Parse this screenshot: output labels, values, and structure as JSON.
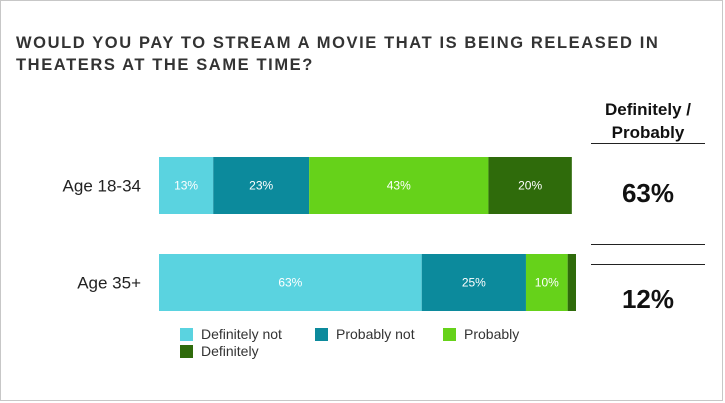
{
  "title": "WOULD YOU PAY TO STREAM A MOVIE THAT IS BEING RELEASED IN THEATERS AT THE SAME TIME?",
  "summary": {
    "header": "Definitely / Probably",
    "values": [
      "63%",
      "12%"
    ]
  },
  "colors": {
    "definitely_not": "#5ad3e0",
    "probably_not": "#0c8a9c",
    "probably": "#66d21a",
    "definitely": "#2f6b0b"
  },
  "chart_data": {
    "type": "bar",
    "orientation": "horizontal",
    "stacked": true,
    "categories": [
      "Age 18-34",
      "Age 35+"
    ],
    "series": [
      {
        "name": "Definitely not",
        "values": [
          13,
          63
        ],
        "labels": [
          "13%",
          "63%"
        ],
        "color": "#5ad3e0"
      },
      {
        "name": "Probably not",
        "values": [
          23,
          25
        ],
        "labels": [
          "23%",
          "25%"
        ],
        "color": "#0c8a9c"
      },
      {
        "name": "Probably",
        "values": [
          43,
          10
        ],
        "labels": [
          "43%",
          "10%"
        ],
        "color": "#66d21a"
      },
      {
        "name": "Definitely",
        "values": [
          20,
          2
        ],
        "labels": [
          "20%",
          ""
        ],
        "color": "#2f6b0b"
      }
    ],
    "xlim": [
      0,
      100
    ],
    "legend_position": "bottom",
    "grid": false
  }
}
